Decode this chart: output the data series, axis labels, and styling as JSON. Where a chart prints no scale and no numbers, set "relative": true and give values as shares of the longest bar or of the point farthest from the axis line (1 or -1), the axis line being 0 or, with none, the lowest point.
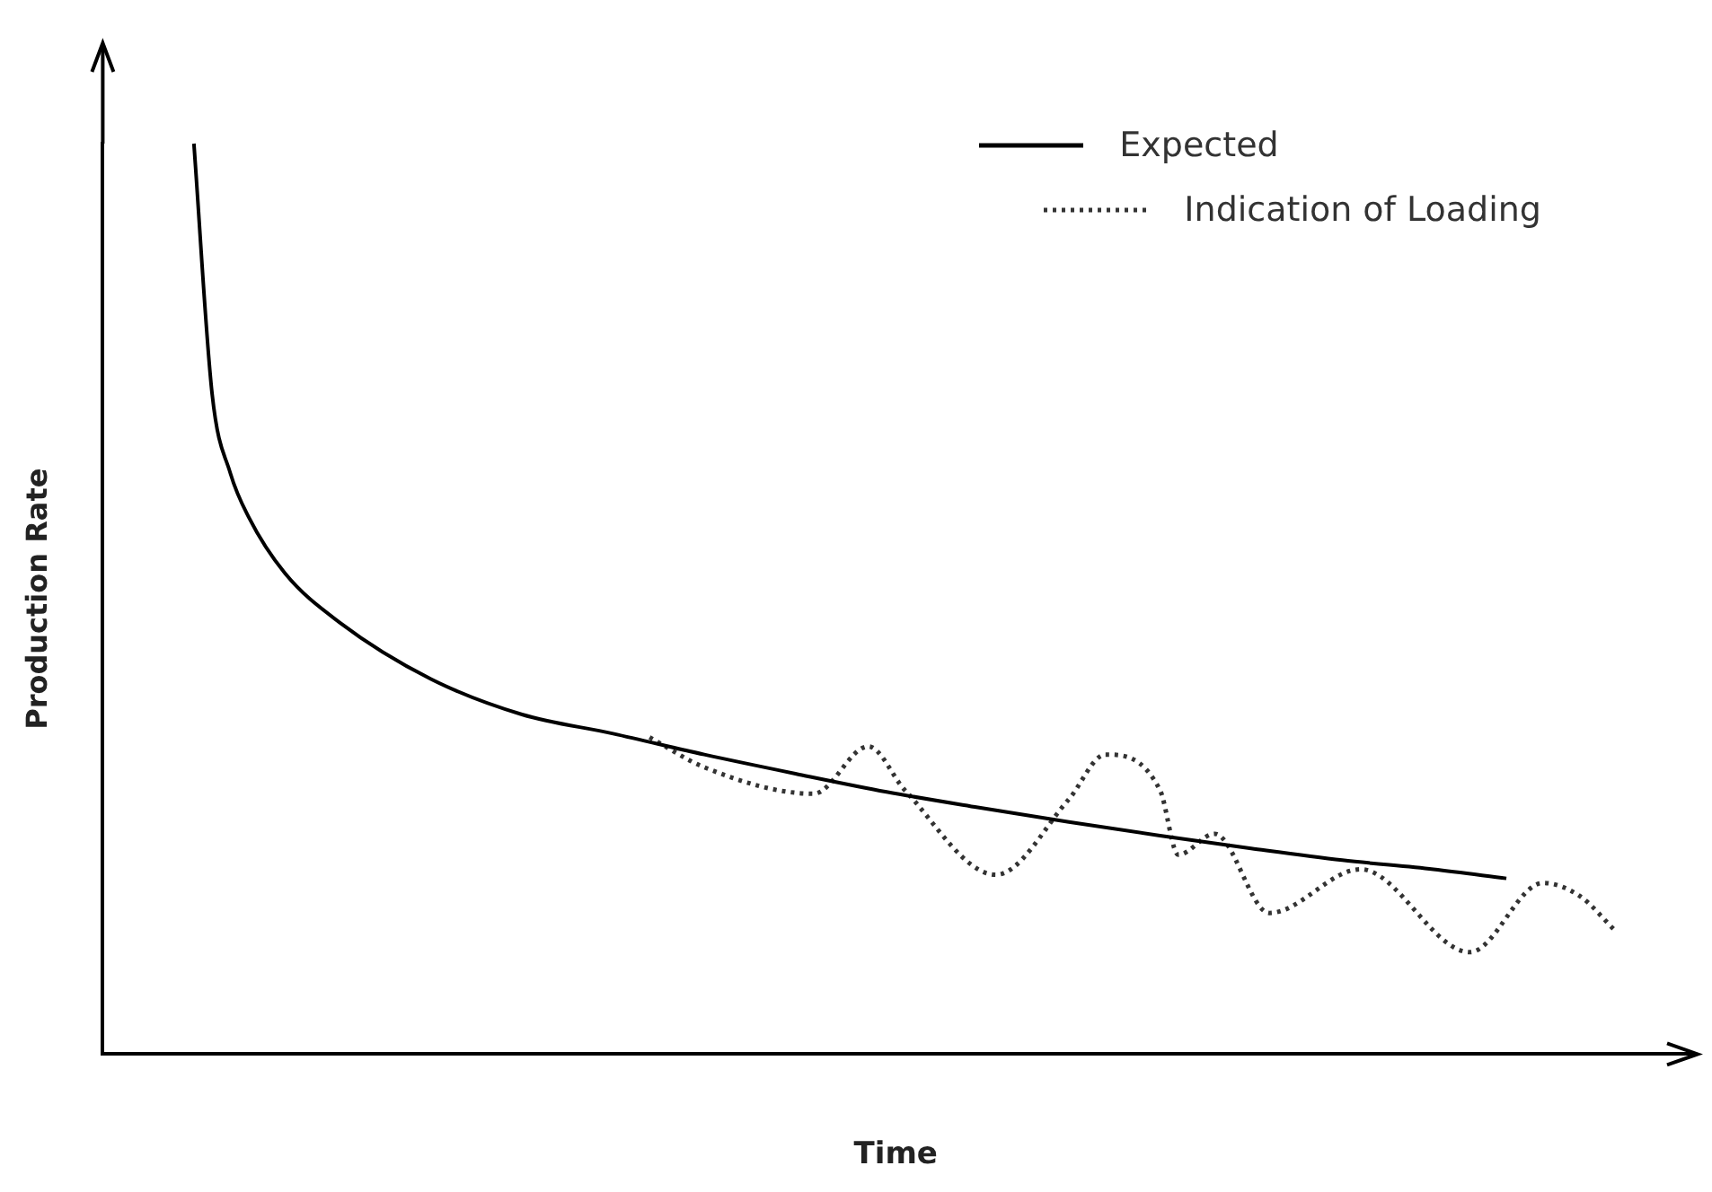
{
  "chart_data": {
    "type": "line",
    "relative": true,
    "xlabel": "Time",
    "ylabel": "Production Rate",
    "legend": "top right",
    "marker": "none",
    "grid": false,
    "categories": [
      null,
      null,
      null,
      null,
      null,
      null,
      null,
      null,
      null,
      null,
      null,
      null,
      null,
      null,
      null,
      null,
      null,
      null,
      null,
      null,
      null,
      null,
      null,
      null,
      null,
      null,
      null,
      null,
      null,
      null,
      null,
      null,
      null,
      null,
      null,
      null,
      null,
      null,
      null,
      null,
      null,
      null,
      null,
      null,
      null,
      null,
      null,
      null,
      null,
      null,
      null,
      null,
      null,
      null,
      null,
      null,
      null,
      null,
      null,
      null,
      null,
      null,
      null,
      null,
      null,
      null,
      null,
      null,
      null,
      null,
      null,
      null,
      null,
      null,
      null,
      null,
      null,
      null,
      null,
      null,
      null,
      null,
      null,
      null,
      null,
      null,
      null,
      null
    ],
    "series": [
      {
        "name": "Expected",
        "color": "#000000",
        "line_style": "solid",
        "values": [
          null,
          null,
          null,
          null,
          null,
          1,
          0.725,
          0.638,
          0.59,
          null,
          0.528,
          null,
          null,
          0.474,
          null,
          null,
          null,
          null,
          0.412,
          null,
          null,
          null,
          null,
          0.373,
          null,
          null,
          null,
          null,
          0.352,
          null,
          null,
          null,
          null,
          0.329,
          null,
          null,
          null,
          null,
          0.308,
          null,
          null,
          null,
          null,
          0.288,
          null,
          null,
          null,
          null,
          0.271,
          null,
          null,
          null,
          null,
          0.255,
          null,
          null,
          null,
          null,
          0.24,
          null,
          null,
          null,
          null,
          0.226,
          null,
          null,
          null,
          null,
          0.213,
          null,
          null,
          null,
          null,
          0.203,
          null,
          null,
          null,
          0.193,
          null,
          null,
          null,
          null,
          null,
          null,
          null,
          null,
          null,
          null
        ]
      },
      {
        "name": "Indication of Loading",
        "color": "#333333",
        "line_style": "dotted",
        "values": [
          null,
          null,
          null,
          null,
          null,
          null,
          null,
          null,
          null,
          null,
          null,
          null,
          null,
          null,
          null,
          null,
          null,
          null,
          null,
          null,
          null,
          null,
          null,
          null,
          null,
          null,
          null,
          null,
          null,
          null,
          0.348,
          null,
          null,
          0.315,
          null,
          null,
          null,
          null,
          null,
          0.286,
          null,
          null,
          0.338,
          null,
          0.29,
          null,
          null,
          null,
          null,
          0.197,
          null,
          null,
          null,
          0.28,
          null,
          0.329,
          null,
          null,
          0.29,
          0.219,
          null,
          0.242,
          null,
          null,
          0.155,
          null,
          null,
          null,
          null,
          0.203,
          null,
          null,
          null,
          null,
          null,
          0.112,
          null,
          null,
          null,
          0.188,
          null,
          0.174,
          null,
          0.135,
          null,
          null,
          null,
          null
        ]
      }
    ]
  }
}
